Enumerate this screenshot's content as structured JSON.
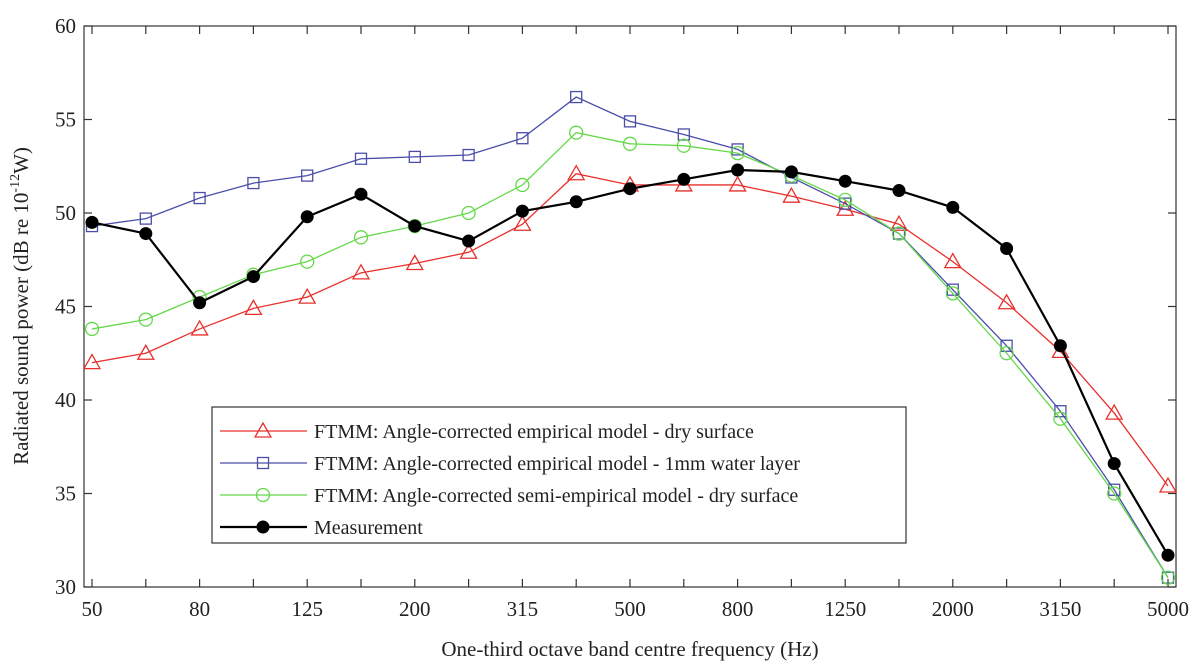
{
  "chart_data": {
    "type": "line",
    "title": "",
    "xlabel": "One-third octave band centre frequency (Hz)",
    "ylabel_main": "Radiated sound power (dB re 10",
    "ylabel_exp": "-12",
    "ylabel_tail": "W)",
    "ylim": [
      30,
      60
    ],
    "yticks": [
      30,
      35,
      40,
      45,
      50,
      55,
      60
    ],
    "ytick_labels": [
      "30",
      "35",
      "40",
      "45",
      "50",
      "55",
      "60"
    ],
    "categories": [
      "50",
      "63",
      "80",
      "100",
      "125",
      "160",
      "200",
      "250",
      "315",
      "400",
      "500",
      "630",
      "800",
      "1000",
      "1250",
      "1600",
      "2000",
      "2500",
      "3150",
      "4000",
      "5000"
    ],
    "xtick_labels": [
      "50",
      "",
      "80",
      "",
      "125",
      "",
      "200",
      "",
      "315",
      "",
      "500",
      "",
      "800",
      "",
      "1250",
      "",
      "2000",
      "",
      "3150",
      "",
      "5000"
    ],
    "grid": false,
    "legend_position": "bottom-left",
    "series": [
      {
        "name": "FTMM: Angle-corrected empirical model - dry surface",
        "color": "#e8302c",
        "marker": "triangle",
        "values": [
          42.0,
          42.5,
          43.8,
          44.9,
          45.5,
          46.8,
          47.3,
          47.9,
          49.4,
          52.1,
          51.5,
          51.5,
          51.5,
          50.9,
          50.2,
          49.4,
          47.4,
          45.2,
          42.6,
          39.3,
          35.4
        ]
      },
      {
        "name": "FTMM: Angle-corrected empirical model - 1mm water layer",
        "color": "#4a4ea8",
        "marker": "square",
        "values": [
          49.3,
          49.7,
          50.8,
          51.6,
          52.0,
          52.9,
          53.0,
          53.1,
          54.0,
          56.2,
          54.9,
          54.2,
          53.4,
          51.9,
          50.5,
          48.9,
          45.9,
          42.9,
          39.4,
          35.2,
          30.5
        ]
      },
      {
        "name": "FTMM: Angle-corrected semi-empirical model - dry surface",
        "color": "#64d84a",
        "marker": "circle",
        "values": [
          43.8,
          44.3,
          45.5,
          46.7,
          47.4,
          48.7,
          49.3,
          50.0,
          51.5,
          54.3,
          53.7,
          53.6,
          53.2,
          52.0,
          50.7,
          48.9,
          45.7,
          42.5,
          39.0,
          35.0,
          30.5
        ]
      },
      {
        "name": "Measurement",
        "color": "#000000",
        "marker": "filled-circle",
        "values": [
          49.5,
          48.9,
          45.2,
          46.6,
          49.8,
          51.0,
          49.3,
          48.5,
          50.1,
          50.6,
          51.3,
          51.8,
          52.3,
          52.2,
          51.7,
          51.2,
          50.3,
          48.1,
          42.9,
          36.6,
          31.7
        ]
      }
    ]
  }
}
